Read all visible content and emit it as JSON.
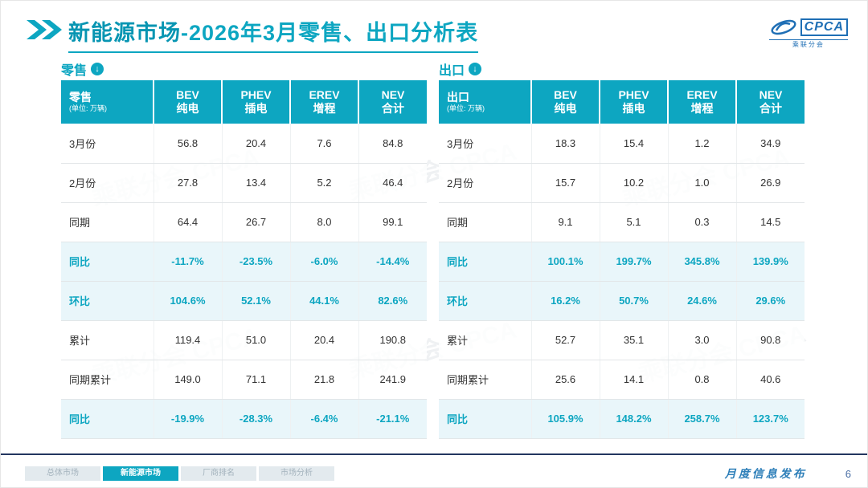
{
  "page": {
    "title_highlight": "新能源市场",
    "title_rest": "-2026年3月零售、出口分析表",
    "accent_color": "#0da6c1"
  },
  "logo": {
    "name": "CPCA",
    "caption": "乘联分会"
  },
  "icons": {
    "down_arrow": "↓"
  },
  "watermark": "乘联分会 CPCA",
  "chart_data": [
    {
      "type": "table",
      "section_label": "零售",
      "corner_label": "零售",
      "unit_note": "(单位: 万辆)",
      "columns": [
        {
          "line1": "BEV",
          "line2": "纯电"
        },
        {
          "line1": "PHEV",
          "line2": "插电"
        },
        {
          "line1": "EREV",
          "line2": "增程"
        },
        {
          "line1": "NEV",
          "line2": "合计"
        }
      ],
      "rows": [
        {
          "label": "3月份",
          "values": [
            "56.8",
            "20.4",
            "7.6",
            "84.8"
          ],
          "highlight": false
        },
        {
          "label": "2月份",
          "values": [
            "27.8",
            "13.4",
            "5.2",
            "46.4"
          ],
          "highlight": false
        },
        {
          "label": "同期",
          "values": [
            "64.4",
            "26.7",
            "8.0",
            "99.1"
          ],
          "highlight": false
        },
        {
          "label": "同比",
          "values": [
            "-11.7%",
            "-23.5%",
            "-6.0%",
            "-14.4%"
          ],
          "highlight": true
        },
        {
          "label": "环比",
          "values": [
            "104.6%",
            "52.1%",
            "44.1%",
            "82.6%"
          ],
          "highlight": true
        },
        {
          "label": "累计",
          "values": [
            "119.4",
            "51.0",
            "20.4",
            "190.8"
          ],
          "highlight": false
        },
        {
          "label": "同期累计",
          "values": [
            "149.0",
            "71.1",
            "21.8",
            "241.9"
          ],
          "highlight": false
        },
        {
          "label": "同比",
          "values": [
            "-19.9%",
            "-28.3%",
            "-6.4%",
            "-21.1%"
          ],
          "highlight": true
        }
      ]
    },
    {
      "type": "table",
      "section_label": "出口",
      "corner_label": "出口",
      "unit_note": "(单位: 万辆)",
      "columns": [
        {
          "line1": "BEV",
          "line2": "纯电"
        },
        {
          "line1": "PHEV",
          "line2": "插电"
        },
        {
          "line1": "EREV",
          "line2": "增程"
        },
        {
          "line1": "NEV",
          "line2": "合计"
        }
      ],
      "rows": [
        {
          "label": "3月份",
          "values": [
            "18.3",
            "15.4",
            "1.2",
            "34.9"
          ],
          "highlight": false
        },
        {
          "label": "2月份",
          "values": [
            "15.7",
            "10.2",
            "1.0",
            "26.9"
          ],
          "highlight": false
        },
        {
          "label": "同期",
          "values": [
            "9.1",
            "5.1",
            "0.3",
            "14.5"
          ],
          "highlight": false
        },
        {
          "label": "同比",
          "values": [
            "100.1%",
            "199.7%",
            "345.8%",
            "139.9%"
          ],
          "highlight": true
        },
        {
          "label": "环比",
          "values": [
            "16.2%",
            "50.7%",
            "24.6%",
            "29.6%"
          ],
          "highlight": true
        },
        {
          "label": "累计",
          "values": [
            "52.7",
            "35.1",
            "3.0",
            "90.8"
          ],
          "highlight": false
        },
        {
          "label": "同期累计",
          "values": [
            "25.6",
            "14.1",
            "0.8",
            "40.6"
          ],
          "highlight": false
        },
        {
          "label": "同比",
          "values": [
            "105.9%",
            "148.2%",
            "258.7%",
            "123.7%"
          ],
          "highlight": true
        }
      ]
    }
  ],
  "footer": {
    "tabs": [
      {
        "label": "总体市场",
        "active": false
      },
      {
        "label": "新能源市场",
        "active": true
      },
      {
        "label": "厂商排名",
        "active": false
      },
      {
        "label": "市场分析",
        "active": false
      }
    ],
    "publication_label": "月度信息发布",
    "page_number": "6"
  }
}
